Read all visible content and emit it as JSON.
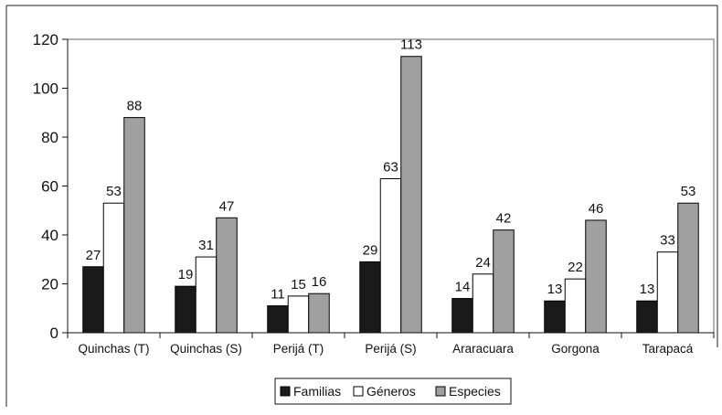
{
  "chart_data": {
    "type": "bar",
    "categories": [
      "Quinchas (T)",
      "Quinchas (S)",
      "Perijá (T)",
      "Perijá (S)",
      "Araracuara",
      "Gorgona",
      "Tarapacá"
    ],
    "series": [
      {
        "name": "Familias",
        "color": "#1a1a1a",
        "values": [
          27,
          19,
          11,
          29,
          14,
          13,
          13
        ]
      },
      {
        "name": "Géneros",
        "color": "#ffffff",
        "values": [
          53,
          31,
          15,
          63,
          24,
          22,
          33
        ]
      },
      {
        "name": "Especies",
        "color": "#a0a0a0",
        "values": [
          88,
          47,
          16,
          113,
          42,
          46,
          53
        ]
      }
    ],
    "ylim": [
      0,
      120
    ],
    "yticks": [
      "0",
      "20",
      "40",
      "60",
      "80",
      "100",
      "120"
    ],
    "grid": false,
    "legend": "bottom-center"
  }
}
